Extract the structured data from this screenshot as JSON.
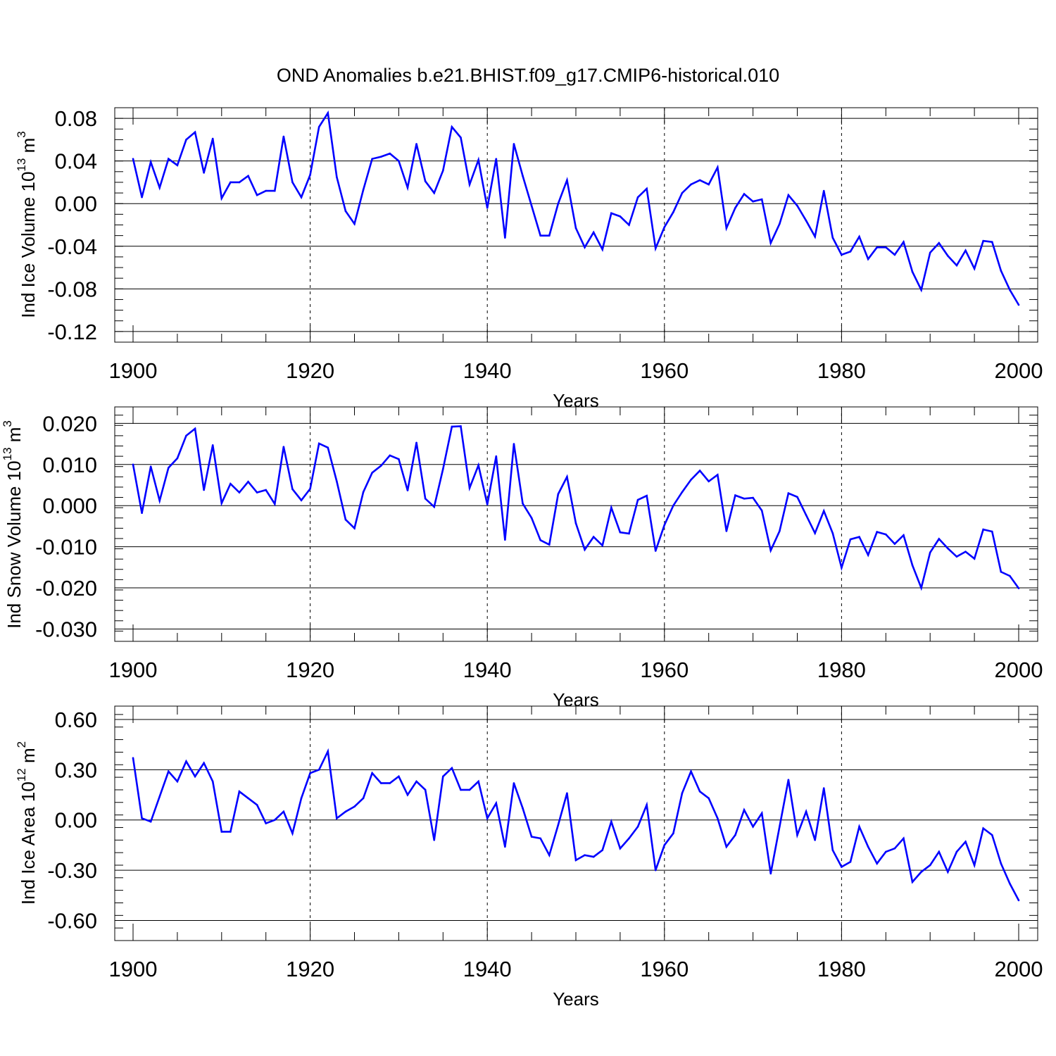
{
  "title": "OND Anomalies b.e21.BHIST.f09_g17.CMIP6-historical.010",
  "colors": {
    "series": "#0000ff",
    "axis": "#000000",
    "ref_line": "#000000",
    "dashed_grid": "#000000"
  },
  "chart_data": [
    {
      "type": "line",
      "name": "ind-ice-volume",
      "ylabel_main": "Ind Ice Volume 10",
      "ylabel_exp": "13",
      "ylabel_unit": " m",
      "ylabel_unit_exp": "3",
      "xlabel": "Years",
      "xlim": [
        1900,
        2000
      ],
      "ylim": [
        -0.13,
        0.09
      ],
      "yticks": [
        0.08,
        0.04,
        0.0,
        -0.04,
        -0.08,
        -0.12
      ],
      "ytick_labels": [
        "0.08",
        "0.04",
        "0.00",
        "-0.04",
        "-0.08",
        "-0.12"
      ],
      "xticks": [
        1900,
        1920,
        1940,
        1960,
        1980,
        2000
      ],
      "xtick_labels": [
        "1900",
        "1920",
        "1940",
        "1960",
        "1980",
        "2000"
      ],
      "dashed_x": [
        1920,
        1940,
        1960,
        1980
      ],
      "ref_y": 0,
      "x_start": 1900,
      "values": [
        0.042,
        0.006,
        0.039,
        0.015,
        0.042,
        0.036,
        0.06,
        0.067,
        0.029,
        0.061,
        0.005,
        0.02,
        0.02,
        0.026,
        0.008,
        0.012,
        0.012,
        0.063,
        0.02,
        0.006,
        0.027,
        0.072,
        0.085,
        0.025,
        -0.007,
        -0.019,
        0.013,
        0.042,
        0.044,
        0.047,
        0.04,
        0.015,
        0.056,
        0.021,
        0.01,
        0.031,
        0.072,
        0.062,
        0.018,
        0.041,
        -0.004,
        0.042,
        -0.032,
        0.056,
        0.026,
        -0.002,
        -0.03,
        -0.03,
        0.0,
        0.022,
        -0.023,
        -0.041,
        -0.027,
        -0.043,
        -0.009,
        -0.012,
        -0.02,
        0.006,
        0.014,
        -0.042,
        -0.022,
        -0.008,
        0.01,
        0.018,
        0.022,
        0.018,
        0.034,
        -0.023,
        -0.004,
        0.009,
        0.002,
        0.004,
        -0.037,
        -0.019,
        0.008,
        -0.002,
        -0.016,
        -0.031,
        0.012,
        -0.032,
        -0.048,
        -0.045,
        -0.031,
        -0.052,
        -0.041,
        -0.041,
        -0.048,
        -0.036,
        -0.064,
        -0.081,
        -0.046,
        -0.037,
        -0.049,
        -0.058,
        -0.044,
        -0.061,
        -0.035,
        -0.036,
        -0.063,
        -0.081,
        -0.095
      ]
    },
    {
      "type": "line",
      "name": "ind-snow-volume",
      "ylabel_main": "Ind Snow Volume 10",
      "ylabel_exp": "13",
      "ylabel_unit": " m",
      "ylabel_unit_exp": "3",
      "xlabel": "Years",
      "xlim": [
        1900,
        2000
      ],
      "ylim": [
        -0.033,
        0.024
      ],
      "yticks": [
        0.02,
        0.01,
        0.0,
        -0.01,
        -0.02,
        -0.03
      ],
      "ytick_labels": [
        "0.020",
        "0.010",
        "0.000",
        "-0.010",
        "-0.020",
        "-0.030"
      ],
      "xticks": [
        1900,
        1920,
        1940,
        1960,
        1980,
        2000
      ],
      "xtick_labels": [
        "1900",
        "1920",
        "1940",
        "1960",
        "1980",
        "2000"
      ],
      "dashed_x": [
        1920,
        1940,
        1960,
        1980
      ],
      "ref_y": 0,
      "x_start": 1900,
      "values": [
        0.01,
        -0.0018,
        0.0095,
        0.0012,
        0.0092,
        0.0115,
        0.017,
        0.0187,
        0.0038,
        0.0147,
        0.0006,
        0.0053,
        0.0032,
        0.0058,
        0.0032,
        0.0038,
        0.0004,
        0.0143,
        0.004,
        0.0013,
        0.0041,
        0.0151,
        0.0141,
        0.0059,
        -0.0034,
        -0.0055,
        0.0033,
        0.008,
        0.0097,
        0.0122,
        0.0113,
        0.0037,
        0.0153,
        0.0017,
        -0.0003,
        0.0089,
        0.0192,
        0.0193,
        0.0043,
        0.0098,
        0.0003,
        0.012,
        -0.0083,
        0.015,
        0.0005,
        -0.003,
        -0.0084,
        -0.0095,
        0.0028,
        0.007,
        -0.0043,
        -0.0107,
        -0.0076,
        -0.0097,
        -0.0005,
        -0.0065,
        -0.0068,
        0.0014,
        0.0024,
        -0.011,
        -0.0047,
        0.0,
        0.0033,
        0.0063,
        0.0085,
        0.0059,
        0.0075,
        -0.0062,
        0.0025,
        0.0017,
        0.0019,
        -0.0012,
        -0.0109,
        -0.0062,
        0.003,
        0.0021,
        -0.0023,
        -0.0067,
        -0.0013,
        -0.0067,
        -0.0151,
        -0.0082,
        -0.0076,
        -0.012,
        -0.0064,
        -0.007,
        -0.0093,
        -0.0072,
        -0.0145,
        -0.02,
        -0.0114,
        -0.0081,
        -0.0104,
        -0.0124,
        -0.0112,
        -0.0129,
        -0.0058,
        -0.0063,
        -0.0161,
        -0.0171,
        -0.0201
      ]
    },
    {
      "type": "line",
      "name": "ind-ice-area",
      "ylabel_main": "Ind Ice Area 10",
      "ylabel_exp": "12",
      "ylabel_unit": " m",
      "ylabel_unit_exp": "2",
      "xlabel": "Years",
      "xlim": [
        1900,
        2000
      ],
      "ylim": [
        -0.72,
        0.68
      ],
      "yticks": [
        0.6,
        0.3,
        0.0,
        -0.3,
        -0.6
      ],
      "ytick_labels": [
        "0.60",
        "0.30",
        "0.00",
        "-0.30",
        "-0.60"
      ],
      "xticks": [
        1900,
        1920,
        1940,
        1960,
        1980,
        2000
      ],
      "xtick_labels": [
        "1900",
        "1920",
        "1940",
        "1960",
        "1980",
        "2000"
      ],
      "dashed_x": [
        1920,
        1940,
        1960,
        1980
      ],
      "ref_y": 0,
      "x_start": 1900,
      "values": [
        0.37,
        0.01,
        -0.01,
        0.14,
        0.29,
        0.23,
        0.35,
        0.26,
        0.34,
        0.23,
        -0.07,
        -0.07,
        0.17,
        0.13,
        0.09,
        -0.02,
        0.0,
        0.05,
        -0.08,
        0.13,
        0.28,
        0.3,
        0.41,
        0.01,
        0.05,
        0.08,
        0.13,
        0.28,
        0.22,
        0.22,
        0.26,
        0.15,
        0.23,
        0.18,
        -0.12,
        0.26,
        0.31,
        0.18,
        0.18,
        0.23,
        0.01,
        0.1,
        -0.16,
        0.22,
        0.07,
        -0.1,
        -0.11,
        -0.21,
        -0.03,
        0.16,
        -0.24,
        -0.21,
        -0.22,
        -0.18,
        -0.01,
        -0.17,
        -0.11,
        -0.04,
        0.09,
        -0.3,
        -0.15,
        -0.08,
        0.16,
        0.29,
        0.17,
        0.13,
        0.01,
        -0.16,
        -0.09,
        0.06,
        -0.04,
        0.04,
        -0.32,
        -0.04,
        0.24,
        -0.09,
        0.05,
        -0.12,
        0.19,
        -0.18,
        -0.28,
        -0.25,
        -0.04,
        -0.16,
        -0.26,
        -0.19,
        -0.17,
        -0.11,
        -0.37,
        -0.31,
        -0.27,
        -0.19,
        -0.31,
        -0.19,
        -0.13,
        -0.27,
        -0.05,
        -0.09,
        -0.26,
        -0.38,
        -0.48
      ]
    }
  ]
}
